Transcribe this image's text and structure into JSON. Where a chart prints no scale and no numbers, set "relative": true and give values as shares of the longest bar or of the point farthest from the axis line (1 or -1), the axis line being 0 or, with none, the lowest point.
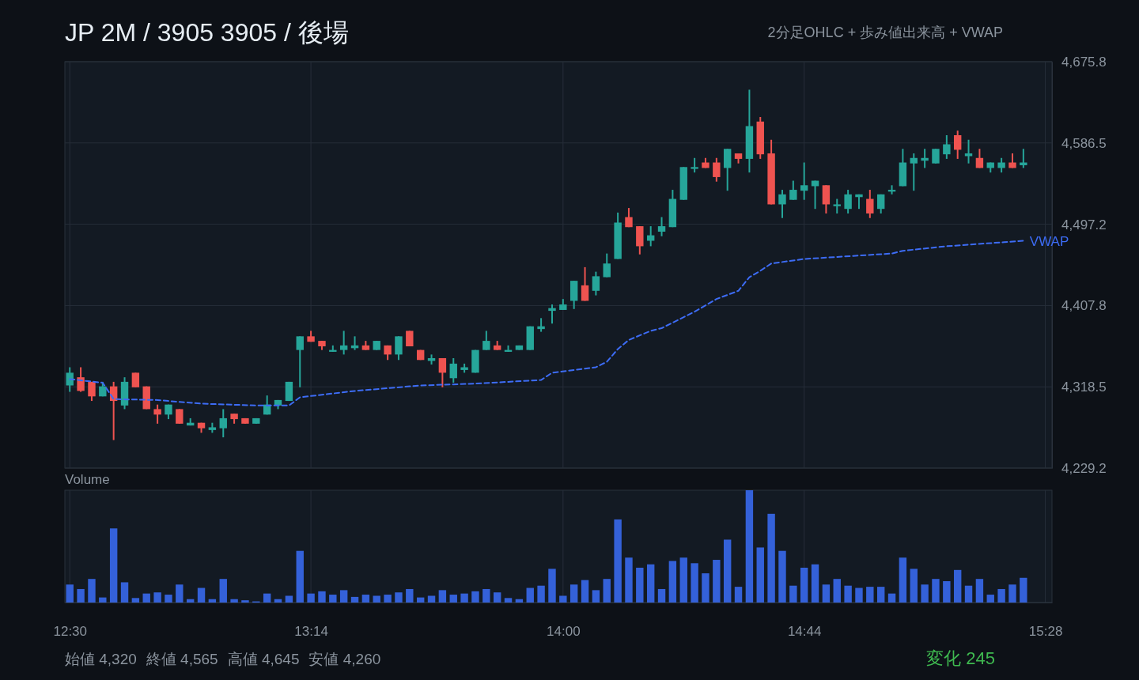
{
  "chart_data": [
    {
      "type": "candlestick",
      "title": "JP 2M / 3905 3905 / 後場",
      "subtitle": "2分足OHLC + 歩み値出来高 + VWAP",
      "x": [
        12.5,
        12.5333,
        12.5667,
        12.6,
        12.6333,
        12.6667,
        12.7,
        12.7333,
        12.7667,
        12.8,
        12.8333,
        12.8667,
        12.9,
        12.9333,
        12.9667,
        13,
        13.0333,
        13.0667,
        13.1,
        13.1333,
        13.1667,
        13.2,
        13.2333,
        13.2667,
        13.3,
        13.3333,
        13.3667,
        13.4,
        13.4333,
        13.4667,
        13.5,
        13.5333,
        13.5667,
        13.6,
        13.6333,
        13.6667,
        13.7,
        13.7333,
        13.7667,
        13.8,
        13.8333,
        13.8667,
        13.9,
        13.9333,
        13.9667,
        14,
        14.0333,
        14.0667,
        14.1,
        14.1333,
        14.1667,
        14.2,
        14.2333,
        14.2667,
        14.3,
        14.3333,
        14.3667,
        14.4,
        14.4333,
        14.4667,
        14.5,
        14.5333,
        14.5667,
        14.6,
        14.6333,
        14.6667,
        14.7,
        14.7333,
        14.7667,
        14.8,
        14.8333,
        14.8667,
        14.9,
        14.9333,
        14.9667,
        15,
        15.0333,
        15.0667,
        15.1,
        15.1333,
        15.1667,
        15.2,
        15.2333,
        15.2667,
        15.3,
        15.3333,
        15.3667,
        15.4
      ],
      "ohlc": [
        [
          4320,
          4340,
          4313,
          4334
        ],
        [
          4329,
          4340,
          4313,
          4314
        ],
        [
          4324,
          4324,
          4303,
          4308
        ],
        [
          4308,
          4324,
          4308,
          4319
        ],
        [
          4319,
          4324,
          4260,
          4303
        ],
        [
          4298,
          4329,
          4294,
          4324
        ],
        [
          4334,
          4334,
          4318,
          4318
        ],
        [
          4319,
          4319,
          4294,
          4294
        ],
        [
          4294,
          4299,
          4278,
          4288
        ],
        [
          4288,
          4299,
          4283,
          4299
        ],
        [
          4294,
          4294,
          4278,
          4278
        ],
        [
          4276,
          4284,
          4276,
          4279
        ],
        [
          4279,
          4279,
          4268,
          4273
        ],
        [
          4271,
          4279,
          4268,
          4274
        ],
        [
          4273,
          4294,
          4263,
          4284
        ],
        [
          4289,
          4289,
          4278,
          4283
        ],
        [
          4284,
          4284,
          4278,
          4278
        ],
        [
          4278,
          4284,
          4278,
          4284
        ],
        [
          4288,
          4309,
          4288,
          4299
        ],
        [
          4298,
          4304,
          4294,
          4304
        ],
        [
          4303,
          4324,
          4303,
          4324
        ],
        [
          4359,
          4374,
          4318,
          4374
        ],
        [
          4374,
          4380,
          4368,
          4368
        ],
        [
          4369,
          4369,
          4359,
          4363
        ],
        [
          4357,
          4364,
          4357,
          4359
        ],
        [
          4359,
          4380,
          4354,
          4364
        ],
        [
          4361,
          4374,
          4359,
          4364
        ],
        [
          4364,
          4369,
          4359,
          4359
        ],
        [
          4359,
          4369,
          4359,
          4369
        ],
        [
          4364,
          4364,
          4348,
          4354
        ],
        [
          4354,
          4374,
          4348,
          4374
        ],
        [
          4380,
          4380,
          4363,
          4363
        ],
        [
          4359,
          4359,
          4348,
          4348
        ],
        [
          4347,
          4354,
          4343,
          4350
        ],
        [
          4350,
          4350,
          4318,
          4334
        ],
        [
          4328,
          4350,
          4323,
          4344
        ],
        [
          4337,
          4344,
          4334,
          4340
        ],
        [
          4334,
          4359,
          4334,
          4359
        ],
        [
          4359,
          4380,
          4359,
          4369
        ],
        [
          4364,
          4369,
          4359,
          4359
        ],
        [
          4357,
          4364,
          4357,
          4359
        ],
        [
          4359,
          4364,
          4359,
          4364
        ],
        [
          4359,
          4385,
          4359,
          4385
        ],
        [
          4382,
          4394,
          4379,
          4385
        ],
        [
          4402,
          4409,
          4388,
          4405
        ],
        [
          4403,
          4415,
          4403,
          4409
        ],
        [
          4413,
          4435,
          4404,
          4435
        ],
        [
          4430,
          4450,
          4413,
          4413
        ],
        [
          4424,
          4445,
          4419,
          4440
        ],
        [
          4439,
          4465,
          4439,
          4454
        ],
        [
          4459,
          4510,
          4459,
          4499
        ],
        [
          4505,
          4515,
          4494,
          4494
        ],
        [
          4495,
          4495,
          4464,
          4473
        ],
        [
          4479,
          4495,
          4473,
          4485
        ],
        [
          4489,
          4505,
          4484,
          4495
        ],
        [
          4494,
          4535,
          4494,
          4525
        ],
        [
          4524,
          4560,
          4524,
          4560
        ],
        [
          4558,
          4570,
          4554,
          4560
        ],
        [
          4565,
          4570,
          4559,
          4559
        ],
        [
          4565,
          4570,
          4544,
          4549
        ],
        [
          4559,
          4580,
          4534,
          4580
        ],
        [
          4575,
          4575,
          4564,
          4569
        ],
        [
          4569,
          4645,
          4554,
          4605
        ],
        [
          4610,
          4615,
          4569,
          4574
        ],
        [
          4575,
          4590,
          4519,
          4519
        ],
        [
          4519,
          4535,
          4504,
          4530
        ],
        [
          4524,
          4545,
          4524,
          4535
        ],
        [
          4534,
          4565,
          4524,
          4540
        ],
        [
          4539,
          4545,
          4514,
          4545
        ],
        [
          4540,
          4540,
          4509,
          4519
        ],
        [
          4517,
          4525,
          4509,
          4519
        ],
        [
          4514,
          4535,
          4509,
          4530
        ],
        [
          4527,
          4530,
          4514,
          4530
        ],
        [
          4525,
          4535,
          4504,
          4509
        ],
        [
          4514,
          4530,
          4509,
          4530
        ],
        [
          4533,
          4540,
          4530,
          4535
        ],
        [
          4539,
          4580,
          4539,
          4565
        ],
        [
          4564,
          4575,
          4534,
          4570
        ],
        [
          4567,
          4580,
          4559,
          4570
        ],
        [
          4564,
          4580,
          4564,
          4580
        ],
        [
          4574,
          4595,
          4569,
          4585
        ],
        [
          4595,
          4600,
          4569,
          4579
        ],
        [
          4572,
          4590,
          4564,
          4575
        ],
        [
          4570,
          4580,
          4559,
          4559
        ],
        [
          4559,
          4565,
          4554,
          4565
        ],
        [
          4559,
          4570,
          4554,
          4565
        ],
        [
          4565,
          4575,
          4559,
          4559
        ],
        [
          4562,
          4580,
          4559,
          4565
        ]
      ],
      "colors": [
        "#26a69a",
        "#ef5350",
        "#ef5350",
        "#26a69a",
        "#ef5350",
        "#26a69a",
        "#ef5350",
        "#ef5350",
        "#ef5350",
        "#26a69a",
        "#ef5350",
        "#26a69a",
        "#ef5350",
        "#26a69a",
        "#26a69a",
        "#ef5350",
        "#ef5350",
        "#26a69a",
        "#26a69a",
        "#26a69a",
        "#26a69a",
        "#26a69a",
        "#ef5350",
        "#ef5350",
        "#26a69a",
        "#26a69a",
        "#26a69a",
        "#ef5350",
        "#26a69a",
        "#ef5350",
        "#26a69a",
        "#ef5350",
        "#ef5350",
        "#26a69a",
        "#ef5350",
        "#26a69a",
        "#26a69a",
        "#26a69a",
        "#26a69a",
        "#ef5350",
        "#26a69a",
        "#26a69a",
        "#26a69a",
        "#26a69a",
        "#26a69a",
        "#26a69a",
        "#26a69a",
        "#ef5350",
        "#26a69a",
        "#26a69a",
        "#26a69a",
        "#ef5350",
        "#ef5350",
        "#26a69a",
        "#26a69a",
        "#26a69a",
        "#26a69a",
        "#26a69a",
        "#ef5350",
        "#ef5350",
        "#26a69a",
        "#ef5350",
        "#26a69a",
        "#ef5350",
        "#ef5350",
        "#26a69a",
        "#26a69a",
        "#26a69a",
        "#26a69a",
        "#ef5350",
        "#26a69a",
        "#26a69a",
        "#26a69a",
        "#ef5350",
        "#26a69a",
        "#26a69a",
        "#26a69a",
        "#26a69a",
        "#26a69a",
        "#26a69a",
        "#26a69a",
        "#ef5350",
        "#26a69a",
        "#ef5350",
        "#26a69a",
        "#26a69a",
        "#ef5350",
        "#26a69a"
      ],
      "series": [
        {
          "type": "line",
          "name": "VWAP",
          "color": "#3d6cf5",
          "line_style": "dashed",
          "x": [
            12.5,
            12.6,
            12.6333,
            12.7667,
            12.9,
            13.0667,
            13.1667,
            13.2,
            13.3667,
            13.5667,
            13.7333,
            13.9333,
            13.9667,
            14.1,
            14.1333,
            14.1667,
            14.2,
            14.2667,
            14.3,
            14.4,
            14.4667,
            14.5333,
            14.5667,
            14.6,
            14.6333,
            14.7333,
            15,
            15.0333,
            15.1667,
            15.4
          ],
          "values": [
            4327,
            4323,
            4305,
            4304,
            4300,
            4298,
            4298,
            4307,
            4314,
            4320,
            4322,
            4326,
            4334,
            4340,
            4346,
            4360,
            4370,
            4380,
            4383,
            4401,
            4415,
            4424,
            4439,
            4446,
            4454,
            4459,
            4465,
            4468,
            4473,
            4479
          ]
        }
      ],
      "xlim": [
        12.485,
        15.487
      ],
      "xticks": [
        {
          "value": 12.5,
          "label": null
        },
        {
          "value": 13.2333,
          "label": null
        },
        {
          "value": 14,
          "label": null
        },
        {
          "value": 14.7333,
          "label": null
        },
        {
          "value": 15.4667,
          "label": null
        }
      ],
      "ylim": [
        4229.2,
        4675.8
      ],
      "yticks": [
        {
          "value": 4229.2,
          "label": "4,229.2"
        },
        {
          "value": 4318.5,
          "label": "4,318.5"
        },
        {
          "value": 4407.8,
          "label": "4,407.8"
        },
        {
          "value": 4497.2,
          "label": "4,497.2"
        },
        {
          "value": 4586.5,
          "label": "4,586.5"
        },
        {
          "value": 4675.8,
          "label": "4,675.8"
        }
      ],
      "tick_labels": "y",
      "grid": true,
      "annotations": [
        "始値 4,320",
        "終値 4,565",
        "高値 4,645",
        "安値 4,260",
        "変化 245"
      ]
    },
    {
      "type": "bar",
      "title": "Volume",
      "relative": true,
      "color": "#3461d9",
      "tick_labels": "x",
      "grid": "x",
      "x": [
        12.5,
        12.5333,
        12.5667,
        12.6,
        12.6333,
        12.6667,
        12.7,
        12.7333,
        12.7667,
        12.8,
        12.8333,
        12.8667,
        12.9,
        12.9333,
        12.9667,
        13,
        13.0333,
        13.0667,
        13.1,
        13.1333,
        13.1667,
        13.2,
        13.2333,
        13.2667,
        13.3,
        13.3333,
        13.3667,
        13.4,
        13.4333,
        13.4667,
        13.5,
        13.5333,
        13.5667,
        13.6,
        13.6333,
        13.6667,
        13.7,
        13.7333,
        13.7667,
        13.8,
        13.8333,
        13.8667,
        13.9,
        13.9333,
        13.9667,
        14,
        14.0333,
        14.0667,
        14.1,
        14.1333,
        14.1667,
        14.2,
        14.2333,
        14.2667,
        14.3,
        14.3333,
        14.3667,
        14.4,
        14.4333,
        14.4667,
        14.5,
        14.5333,
        14.5667,
        14.6,
        14.6333,
        14.6667,
        14.7,
        14.7333,
        14.7667,
        14.8,
        14.8333,
        14.8667,
        14.9,
        14.9333,
        14.9667,
        15,
        15.0333,
        15.0667,
        15.1,
        15.1333,
        15.1667,
        15.2,
        15.2333,
        15.2667,
        15.3,
        15.3333,
        15.3667,
        15.4
      ],
      "values": [
        0.16,
        0.12,
        0.21,
        0.045,
        0.66,
        0.18,
        0.04,
        0.08,
        0.09,
        0.07,
        0.16,
        0.03,
        0.13,
        0.03,
        0.21,
        0.03,
        0.02,
        0.01,
        0.08,
        0.03,
        0.06,
        0.46,
        0.08,
        0.1,
        0.07,
        0.11,
        0.05,
        0.07,
        0.06,
        0.07,
        0.09,
        0.12,
        0.045,
        0.06,
        0.11,
        0.07,
        0.08,
        0.1,
        0.12,
        0.09,
        0.04,
        0.03,
        0.13,
        0.15,
        0.3,
        0.06,
        0.16,
        0.2,
        0.11,
        0.21,
        0.74,
        0.4,
        0.31,
        0.34,
        0.12,
        0.37,
        0.4,
        0.35,
        0.26,
        0.38,
        0.56,
        0.14,
        1,
        0.49,
        0.79,
        0.46,
        0.15,
        0.31,
        0.34,
        0.16,
        0.21,
        0.15,
        0.13,
        0.14,
        0.14,
        0.08,
        0.4,
        0.3,
        0.16,
        0.21,
        0.19,
        0.29,
        0.15,
        0.21,
        0.07,
        0.12,
        0.16,
        0.22
      ],
      "xlim": [
        12.485,
        15.487
      ],
      "xticks": [
        {
          "value": 12.5,
          "label": "12:30"
        },
        {
          "value": 13.2333,
          "label": "13:14"
        },
        {
          "value": 14,
          "label": "14:00"
        },
        {
          "value": 14.7333,
          "label": "14:44"
        },
        {
          "value": 15.4667,
          "label": "15:28"
        }
      ]
    }
  ]
}
